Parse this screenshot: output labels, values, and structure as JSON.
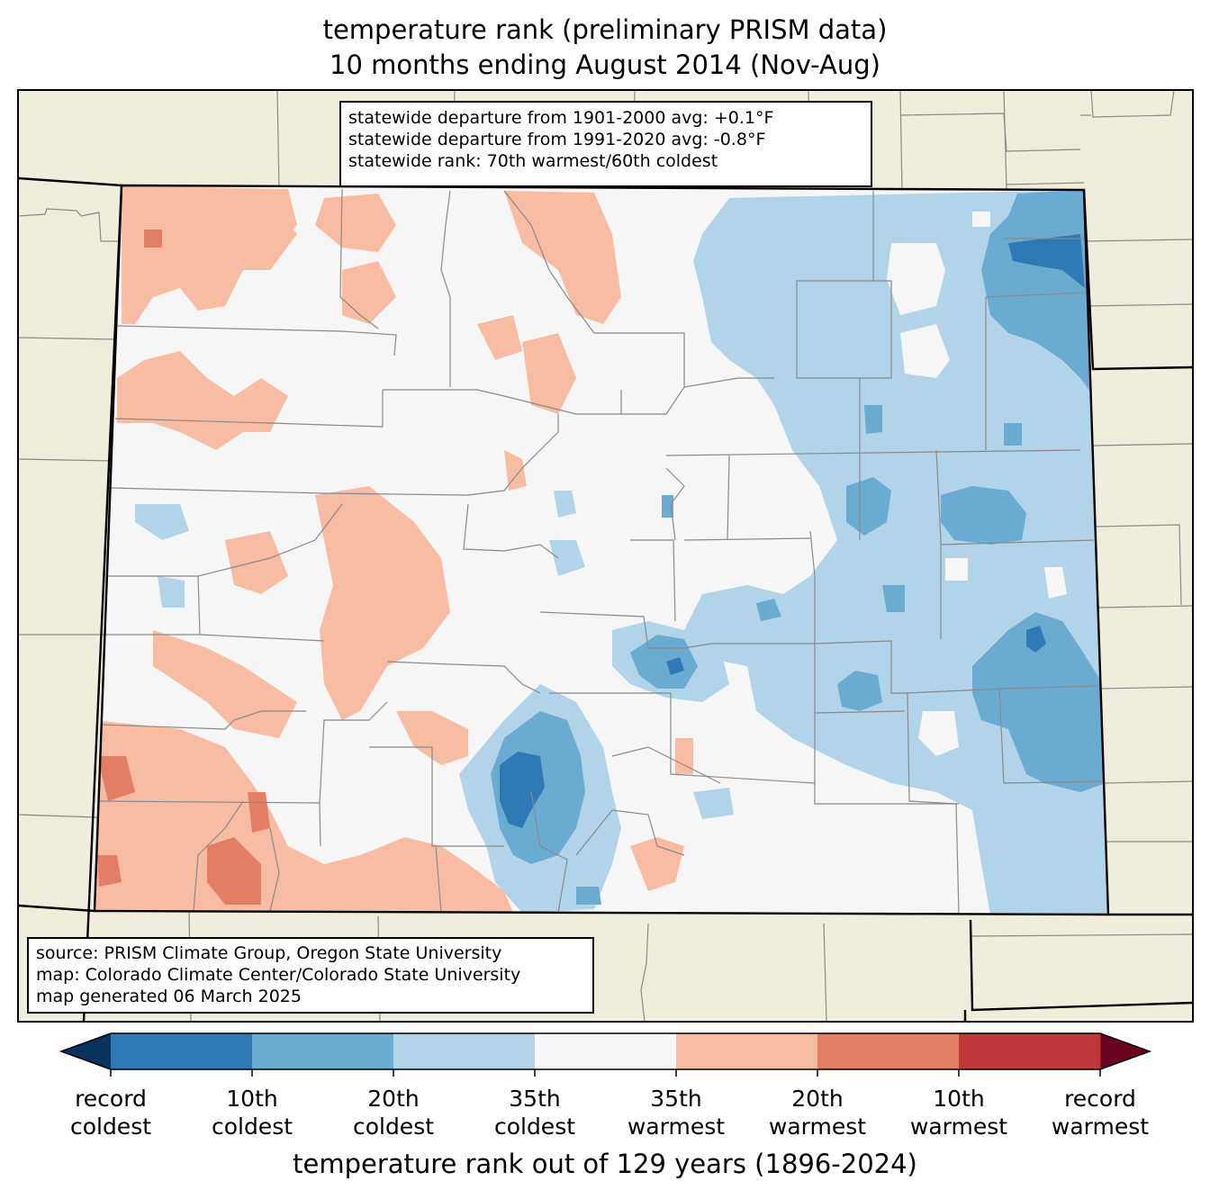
{
  "title_line1": "temperature rank (preliminary PRISM data)",
  "title_line2": "10 months ending August 2014 (Nov-Aug)",
  "stats": {
    "line1": "statewide departure from 1901-2000 avg: +0.1°F",
    "line2": "statewide departure from 1991-2020 avg: -0.8°F",
    "line3": "statewide rank: 70th warmest/60th coldest"
  },
  "source": {
    "line1": "source: PRISM Climate Group, Oregon State University",
    "line2": "map: Colorado Climate Center/Colorado State University",
    "line3": "map generated 06 March 2025"
  },
  "colorbar": {
    "label": "temperature rank out of 129 years (1896-2024)",
    "colors": [
      "#2f79b5",
      "#6aabd1",
      "#b1d4e8",
      "#f6f6f6",
      "#f8bca2",
      "#e27f65",
      "#c13639"
    ],
    "under_color": "#08335e",
    "over_color": "#6a0220",
    "ticks": [
      {
        "l1": "record",
        "l2": "coldest"
      },
      {
        "l1": "10th",
        "l2": "coldest"
      },
      {
        "l1": "20th",
        "l2": "coldest"
      },
      {
        "l1": "35th",
        "l2": "coldest"
      },
      {
        "l1": "35th",
        "l2": "warmest"
      },
      {
        "l1": "20th",
        "l2": "warmest"
      },
      {
        "l1": "10th",
        "l2": "warmest"
      },
      {
        "l1": "record",
        "l2": "warmest"
      }
    ]
  },
  "map": {
    "land_color": "#efeedc",
    "neutral_color": "#f6f6f6",
    "warm_color": "#f8bca2",
    "warmer_color": "#e27f65",
    "cold_color": "#b1d4e8",
    "colder_color": "#6aabd1",
    "coldest_color": "#2f79b5"
  }
}
